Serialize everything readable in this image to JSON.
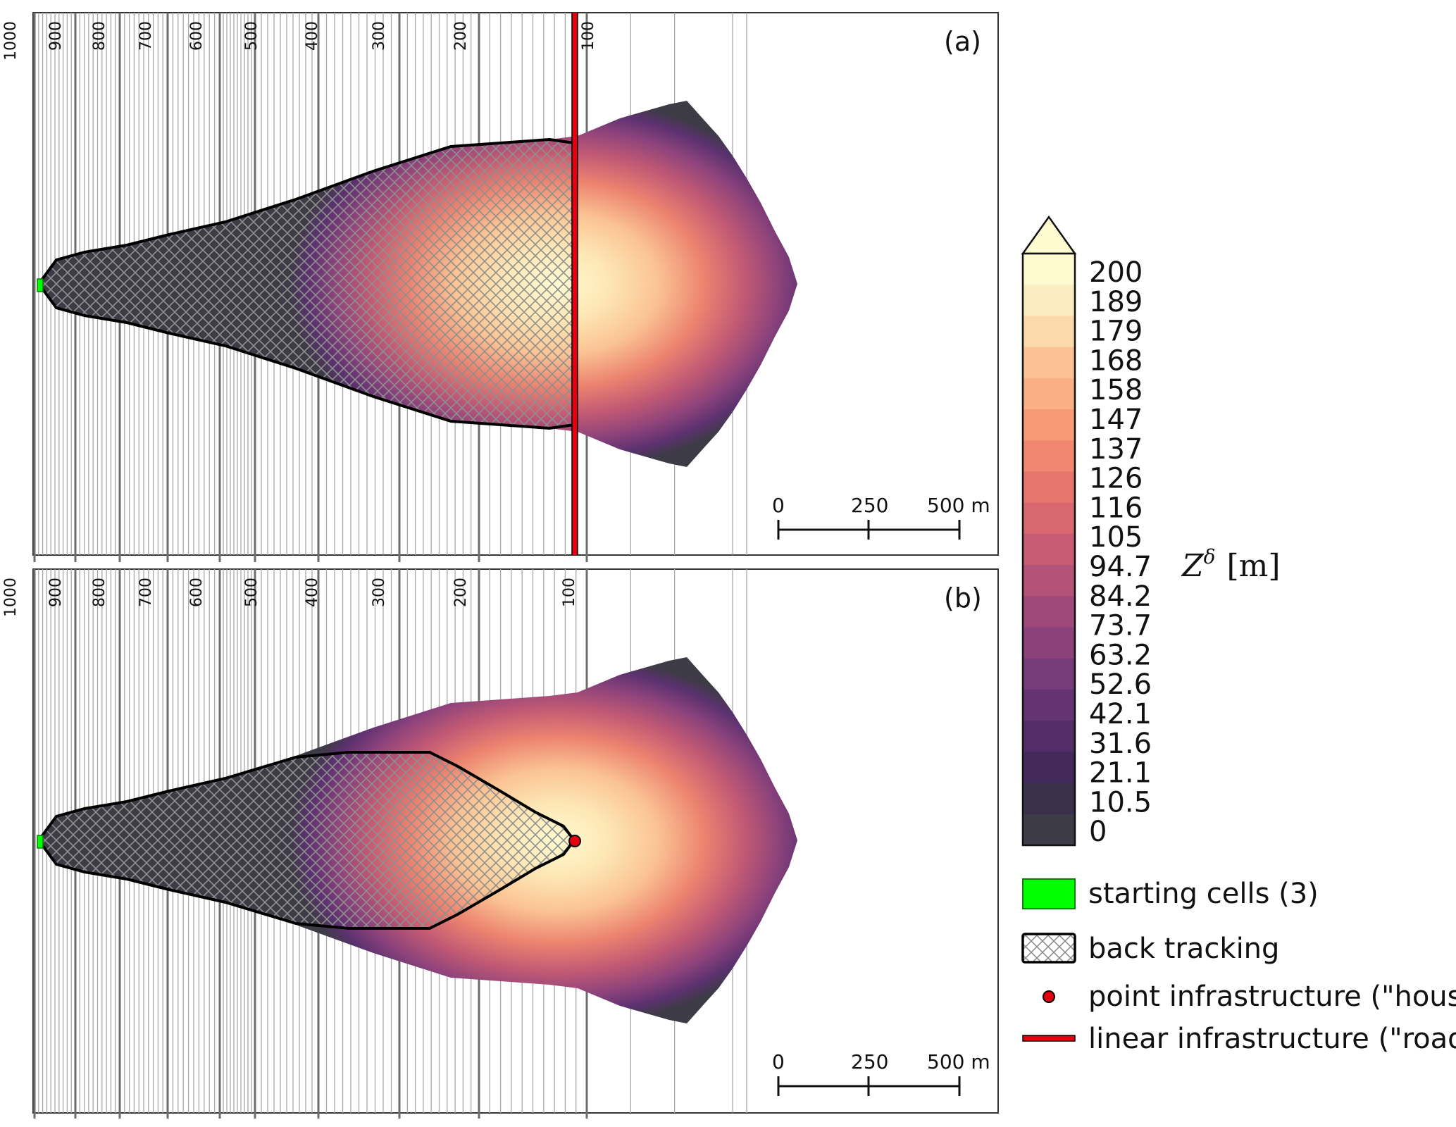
{
  "contour_labels": [
    "1000",
    "900",
    "800",
    "700",
    "600",
    "500",
    "400",
    "300",
    "200",
    "100"
  ],
  "panels": [
    {
      "label": "(a)",
      "infrastructure": "road"
    },
    {
      "label": "(b)",
      "infrastructure": "house"
    }
  ],
  "scalebar": {
    "ticks": [
      "0",
      "250",
      "500 m"
    ]
  },
  "colorbar": {
    "title_symbol": "Z",
    "title_superscript": "δ",
    "title_unit": "[m]",
    "ticks": [
      "200",
      "189",
      "179",
      "168",
      "158",
      "147",
      "137",
      "126",
      "116",
      "105",
      "94.7",
      "84.2",
      "73.7",
      "63.2",
      "52.6",
      "42.1",
      "31.6",
      "21.1",
      "10.5",
      "0"
    ],
    "colors": [
      "#fffbd1",
      "#fbedc0",
      "#fbd9a9",
      "#fbc393",
      "#fbaf84",
      "#f99a76",
      "#f2876f",
      "#e6766d",
      "#d8676f",
      "#c75b73",
      "#b45277",
      "#9f497a",
      "#8b427b",
      "#783b79",
      "#643472",
      "#522d66",
      "#42295a",
      "#3c2f4b",
      "#3d3b45"
    ]
  },
  "legend": {
    "starting_cells": "starting cells (3)",
    "back_tracking": "back tracking",
    "point_infrastructure": "point infrastructure (\"house\")",
    "linear_infrastructure": "linear infrastructure (\"road\")",
    "colors": {
      "start": "#00ff00",
      "infrastructure": "#e3000f"
    }
  }
}
